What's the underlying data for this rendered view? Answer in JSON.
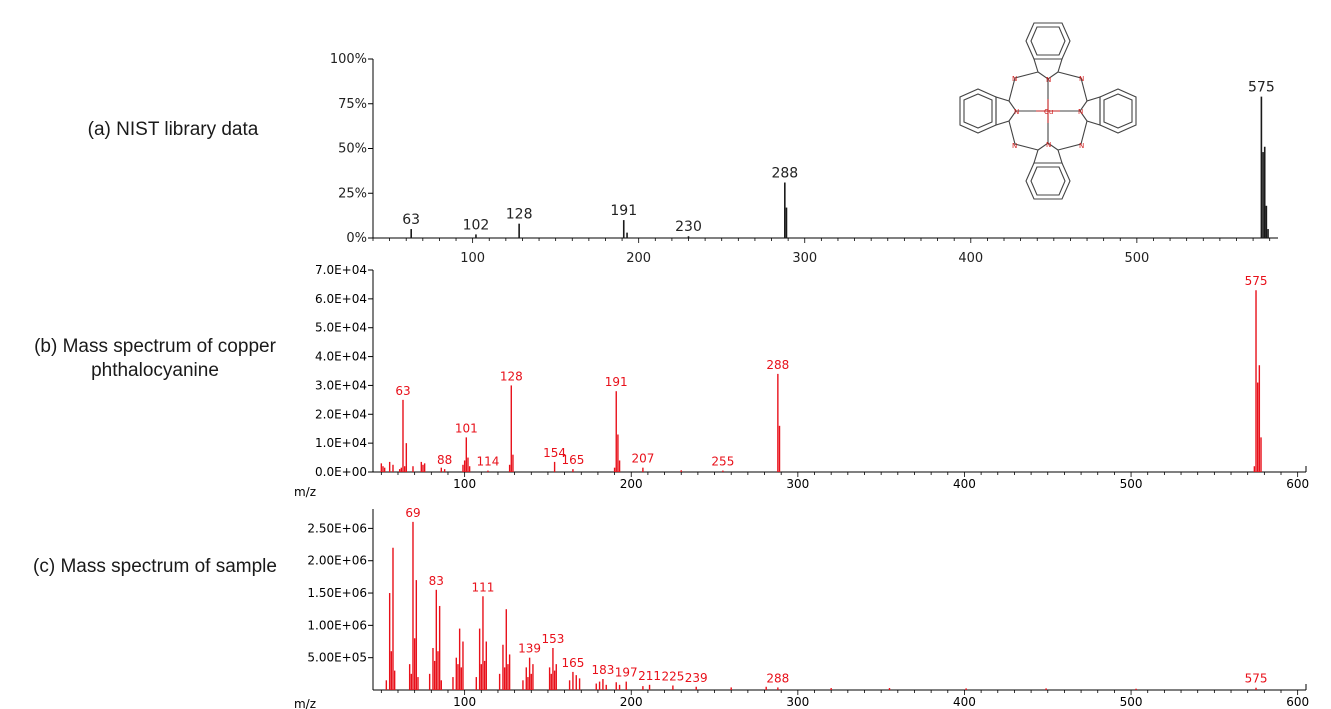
{
  "labels": {
    "a": "(a) NIST library data",
    "b_line1": "(b) Mass spectrum of copper",
    "b_line2": "phthalocyanine",
    "c": "(c) Mass spectrum of sample"
  },
  "structure_atom_labels": {
    "nitrogen": "N",
    "copper": "Cu"
  },
  "colors": {
    "nist_bars": "#1a1a1a",
    "measured_bars": "#e8101a",
    "axis": "#000000"
  },
  "chart_data": [
    {
      "id": "a",
      "type": "bar",
      "title": "",
      "xlabel": "",
      "ylabel": "",
      "xlim": [
        40,
        585
      ],
      "ylim": [
        0,
        100
      ],
      "yticks": [
        0,
        25,
        50,
        75,
        100
      ],
      "ytick_labels": [
        "0%",
        "25%",
        "50%",
        "75%",
        "100%"
      ],
      "xticks": [
        100,
        200,
        300,
        400,
        500
      ],
      "xtick_labels": [
        "100",
        "200",
        "300",
        "400",
        "500"
      ],
      "peaks": [
        {
          "x": 63,
          "y": 5,
          "label": "63"
        },
        {
          "x": 102,
          "y": 2,
          "label": "102"
        },
        {
          "x": 128,
          "y": 8,
          "label": "128"
        },
        {
          "x": 191,
          "y": 10,
          "label": "191"
        },
        {
          "x": 193,
          "y": 3
        },
        {
          "x": 230,
          "y": 1,
          "label": "230"
        },
        {
          "x": 288,
          "y": 31,
          "label": "288"
        },
        {
          "x": 289,
          "y": 17
        },
        {
          "x": 575,
          "y": 79,
          "label": "575"
        },
        {
          "x": 576,
          "y": 48
        },
        {
          "x": 577,
          "y": 51
        },
        {
          "x": 578,
          "y": 18
        },
        {
          "x": 579,
          "y": 5
        }
      ]
    },
    {
      "id": "b",
      "type": "bar",
      "title": "",
      "xlabel": "m/z",
      "ylabel": "",
      "xlim": [
        45,
        605
      ],
      "ylim": [
        0,
        70000
      ],
      "yticks": [
        0,
        10000,
        20000,
        30000,
        40000,
        50000,
        60000,
        70000
      ],
      "ytick_labels": [
        "0.0E+00",
        "1.0E+04",
        "2.0E+04",
        "3.0E+04",
        "4.0E+04",
        "5.0E+04",
        "6.0E+04",
        "7.0E+04"
      ],
      "xticks": [
        100,
        200,
        300,
        400,
        500,
        600
      ],
      "xtick_labels": [
        "100",
        "200",
        "300",
        "400",
        "500",
        "600"
      ],
      "peaks": [
        {
          "x": 50,
          "y": 3000
        },
        {
          "x": 51,
          "y": 2000
        },
        {
          "x": 52,
          "y": 1500
        },
        {
          "x": 55,
          "y": 3500
        },
        {
          "x": 57,
          "y": 2500
        },
        {
          "x": 61,
          "y": 1000
        },
        {
          "x": 62,
          "y": 1500
        },
        {
          "x": 63,
          "y": 25000,
          "label": "63"
        },
        {
          "x": 64,
          "y": 2000
        },
        {
          "x": 65,
          "y": 10000
        },
        {
          "x": 69,
          "y": 2000
        },
        {
          "x": 74,
          "y": 3500
        },
        {
          "x": 75,
          "y": 2500
        },
        {
          "x": 76,
          "y": 3000
        },
        {
          "x": 86,
          "y": 1500
        },
        {
          "x": 88,
          "y": 1000,
          "label": "88"
        },
        {
          "x": 99,
          "y": 2500
        },
        {
          "x": 100,
          "y": 4000
        },
        {
          "x": 101,
          "y": 12000,
          "label": "101"
        },
        {
          "x": 102,
          "y": 5000
        },
        {
          "x": 103,
          "y": 2000
        },
        {
          "x": 114,
          "y": 500,
          "label": "114"
        },
        {
          "x": 127,
          "y": 2500
        },
        {
          "x": 128,
          "y": 30000,
          "label": "128"
        },
        {
          "x": 129,
          "y": 6000
        },
        {
          "x": 154,
          "y": 3500,
          "label": "154"
        },
        {
          "x": 165,
          "y": 1000,
          "label": "165"
        },
        {
          "x": 190,
          "y": 1500
        },
        {
          "x": 191,
          "y": 28000,
          "label": "191"
        },
        {
          "x": 192,
          "y": 13000
        },
        {
          "x": 193,
          "y": 4000
        },
        {
          "x": 207,
          "y": 1500,
          "label": "207"
        },
        {
          "x": 230,
          "y": 600
        },
        {
          "x": 255,
          "y": 500,
          "label": "255"
        },
        {
          "x": 288,
          "y": 34000,
          "label": "288"
        },
        {
          "x": 289,
          "y": 16000
        },
        {
          "x": 574,
          "y": 2000
        },
        {
          "x": 575,
          "y": 63000,
          "label": "575"
        },
        {
          "x": 576,
          "y": 31000
        },
        {
          "x": 577,
          "y": 37000
        },
        {
          "x": 578,
          "y": 12000
        }
      ]
    },
    {
      "id": "c",
      "type": "bar",
      "title": "",
      "xlabel": "m/z",
      "ylabel": "",
      "xlim": [
        45,
        605
      ],
      "ylim": [
        0,
        2800000
      ],
      "yticks": [
        500000,
        1000000,
        1500000,
        2000000,
        2500000
      ],
      "ytick_labels": [
        "5.00E+05",
        "1.00E+06",
        "1.50E+06",
        "2.00E+06",
        "2.50E+06"
      ],
      "xticks": [
        100,
        200,
        300,
        400,
        500,
        600
      ],
      "xtick_labels": [
        "100",
        "200",
        "300",
        "400",
        "500",
        "600"
      ],
      "peaks": [
        {
          "x": 53,
          "y": 150000
        },
        {
          "x": 55,
          "y": 1500000
        },
        {
          "x": 56,
          "y": 600000
        },
        {
          "x": 57,
          "y": 2200000
        },
        {
          "x": 58,
          "y": 300000
        },
        {
          "x": 67,
          "y": 400000
        },
        {
          "x": 68,
          "y": 250000
        },
        {
          "x": 69,
          "y": 2600000,
          "label": "69"
        },
        {
          "x": 70,
          "y": 800000
        },
        {
          "x": 71,
          "y": 1700000
        },
        {
          "x": 72,
          "y": 200000
        },
        {
          "x": 79,
          "y": 250000
        },
        {
          "x": 81,
          "y": 650000
        },
        {
          "x": 82,
          "y": 450000
        },
        {
          "x": 83,
          "y": 1550000,
          "label": "83"
        },
        {
          "x": 84,
          "y": 600000
        },
        {
          "x": 85,
          "y": 1300000
        },
        {
          "x": 86,
          "y": 150000
        },
        {
          "x": 93,
          "y": 200000
        },
        {
          "x": 95,
          "y": 500000
        },
        {
          "x": 96,
          "y": 400000
        },
        {
          "x": 97,
          "y": 950000
        },
        {
          "x": 98,
          "y": 350000
        },
        {
          "x": 99,
          "y": 750000
        },
        {
          "x": 107,
          "y": 200000
        },
        {
          "x": 109,
          "y": 950000
        },
        {
          "x": 110,
          "y": 400000
        },
        {
          "x": 111,
          "y": 1450000,
          "label": "111"
        },
        {
          "x": 112,
          "y": 450000
        },
        {
          "x": 113,
          "y": 750000
        },
        {
          "x": 121,
          "y": 250000
        },
        {
          "x": 123,
          "y": 700000
        },
        {
          "x": 124,
          "y": 350000
        },
        {
          "x": 125,
          "y": 1250000
        },
        {
          "x": 126,
          "y": 400000
        },
        {
          "x": 127,
          "y": 550000
        },
        {
          "x": 135,
          "y": 150000
        },
        {
          "x": 137,
          "y": 350000
        },
        {
          "x": 138,
          "y": 200000
        },
        {
          "x": 139,
          "y": 500000,
          "label": "139"
        },
        {
          "x": 140,
          "y": 250000
        },
        {
          "x": 141,
          "y": 400000
        },
        {
          "x": 151,
          "y": 350000
        },
        {
          "x": 152,
          "y": 250000
        },
        {
          "x": 153,
          "y": 650000,
          "label": "153"
        },
        {
          "x": 154,
          "y": 300000
        },
        {
          "x": 155,
          "y": 400000
        },
        {
          "x": 163,
          "y": 150000
        },
        {
          "x": 165,
          "y": 280000,
          "label": "165"
        },
        {
          "x": 167,
          "y": 230000
        },
        {
          "x": 169,
          "y": 180000
        },
        {
          "x": 179,
          "y": 100000
        },
        {
          "x": 181,
          "y": 130000
        },
        {
          "x": 183,
          "y": 170000,
          "label": "183"
        },
        {
          "x": 185,
          "y": 80000
        },
        {
          "x": 191,
          "y": 120000
        },
        {
          "x": 193,
          "y": 80000
        },
        {
          "x": 197,
          "y": 130000,
          "label": "197"
        },
        {
          "x": 207,
          "y": 60000
        },
        {
          "x": 211,
          "y": 80000,
          "label": "211"
        },
        {
          "x": 225,
          "y": 70000,
          "label": "225"
        },
        {
          "x": 239,
          "y": 50000,
          "label": "239"
        },
        {
          "x": 260,
          "y": 40000
        },
        {
          "x": 281,
          "y": 50000
        },
        {
          "x": 288,
          "y": 40000,
          "label": "288"
        },
        {
          "x": 320,
          "y": 30000
        },
        {
          "x": 355,
          "y": 30000
        },
        {
          "x": 401,
          "y": 25000
        },
        {
          "x": 449,
          "y": 25000
        },
        {
          "x": 503,
          "y": 20000
        },
        {
          "x": 575,
          "y": 35000,
          "label": "575"
        }
      ]
    }
  ]
}
